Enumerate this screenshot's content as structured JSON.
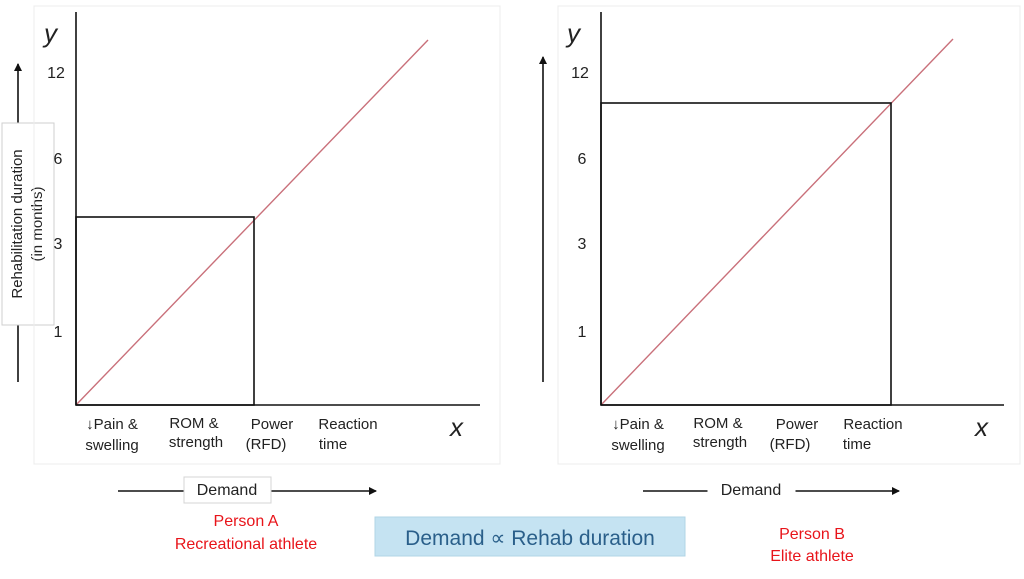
{
  "ylabel_line1": "Rehabilitation duration",
  "ylabel_line2": "(in months)",
  "demand_label": "Demand",
  "formula": "Demand ∝ Rehab duration",
  "colors": {
    "diagonal": "#c9707a",
    "person_text": "#e8141a",
    "formula_box": "#c5e3f2",
    "formula_text": "#2a5f8a"
  },
  "panels": [
    {
      "y_var": "y",
      "x_var": "x",
      "y_ticks": [
        "12",
        "6",
        "3",
        "1"
      ],
      "categories": [
        {
          "line1": "↓Pain &",
          "line2": "swelling"
        },
        {
          "line1": "ROM &",
          "line2": "strength"
        },
        {
          "line1": "Power",
          "line2": "(RFD)"
        },
        {
          "line1": "Reaction",
          "line2": "time"
        }
      ],
      "person_name": "Person A",
      "person_type": "Recreational athlete",
      "reached_category": "Power (RFD)"
    },
    {
      "y_var": "y",
      "x_var": "x",
      "y_ticks": [
        "12",
        "6",
        "3",
        "1"
      ],
      "categories": [
        {
          "line1": "↓Pain &",
          "line2": "swelling"
        },
        {
          "line1": "ROM &",
          "line2": "strength"
        },
        {
          "line1": "Power",
          "line2": "(RFD)"
        },
        {
          "line1": "Reaction",
          "line2": "time"
        }
      ],
      "person_name": "Person B",
      "person_type": "Elite athlete",
      "reached_category": "Reaction time"
    }
  ]
}
